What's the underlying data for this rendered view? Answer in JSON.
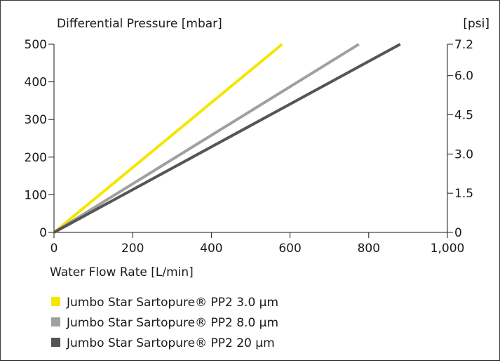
{
  "chart_data": {
    "type": "line",
    "ylabel": "Differential Pressure [mbar]",
    "y2label": "[psi]",
    "xlabel": "Water Flow Rate [L/min]",
    "xlim": [
      0,
      1000
    ],
    "ylim": [
      0,
      500
    ],
    "y2lim": [
      0,
      7.2
    ],
    "x_ticks": [
      "0",
      "200",
      "400",
      "600",
      "800",
      "1,000"
    ],
    "x_tick_values": [
      0,
      200,
      400,
      600,
      800,
      1000
    ],
    "y_ticks": [
      "0",
      "100",
      "200",
      "300",
      "400",
      "500"
    ],
    "y_tick_values": [
      0,
      100,
      200,
      300,
      400,
      500
    ],
    "y2_ticks": [
      "0",
      "1.5",
      "3.0",
      "4.5",
      "6.0",
      "7.2"
    ],
    "y2_tick_values": [
      0,
      1.5,
      3.0,
      4.5,
      6.0,
      7.2
    ],
    "grid": false,
    "legend_position": "bottom-left",
    "series": [
      {
        "name": "Jumbo Star Sartopure® PP2 3.0 µm",
        "color": "#f5e600",
        "x": [
          0,
          580
        ],
        "y": [
          0,
          500
        ]
      },
      {
        "name": "Jumbo Star Sartopure® PP2 8.0 µm",
        "color": "#a0a0a0",
        "x": [
          0,
          775
        ],
        "y": [
          0,
          500
        ]
      },
      {
        "name": "Jumbo Star Sartopure® PP2 20 µm",
        "color": "#555555",
        "x": [
          0,
          880
        ],
        "y": [
          0,
          500
        ]
      }
    ]
  }
}
